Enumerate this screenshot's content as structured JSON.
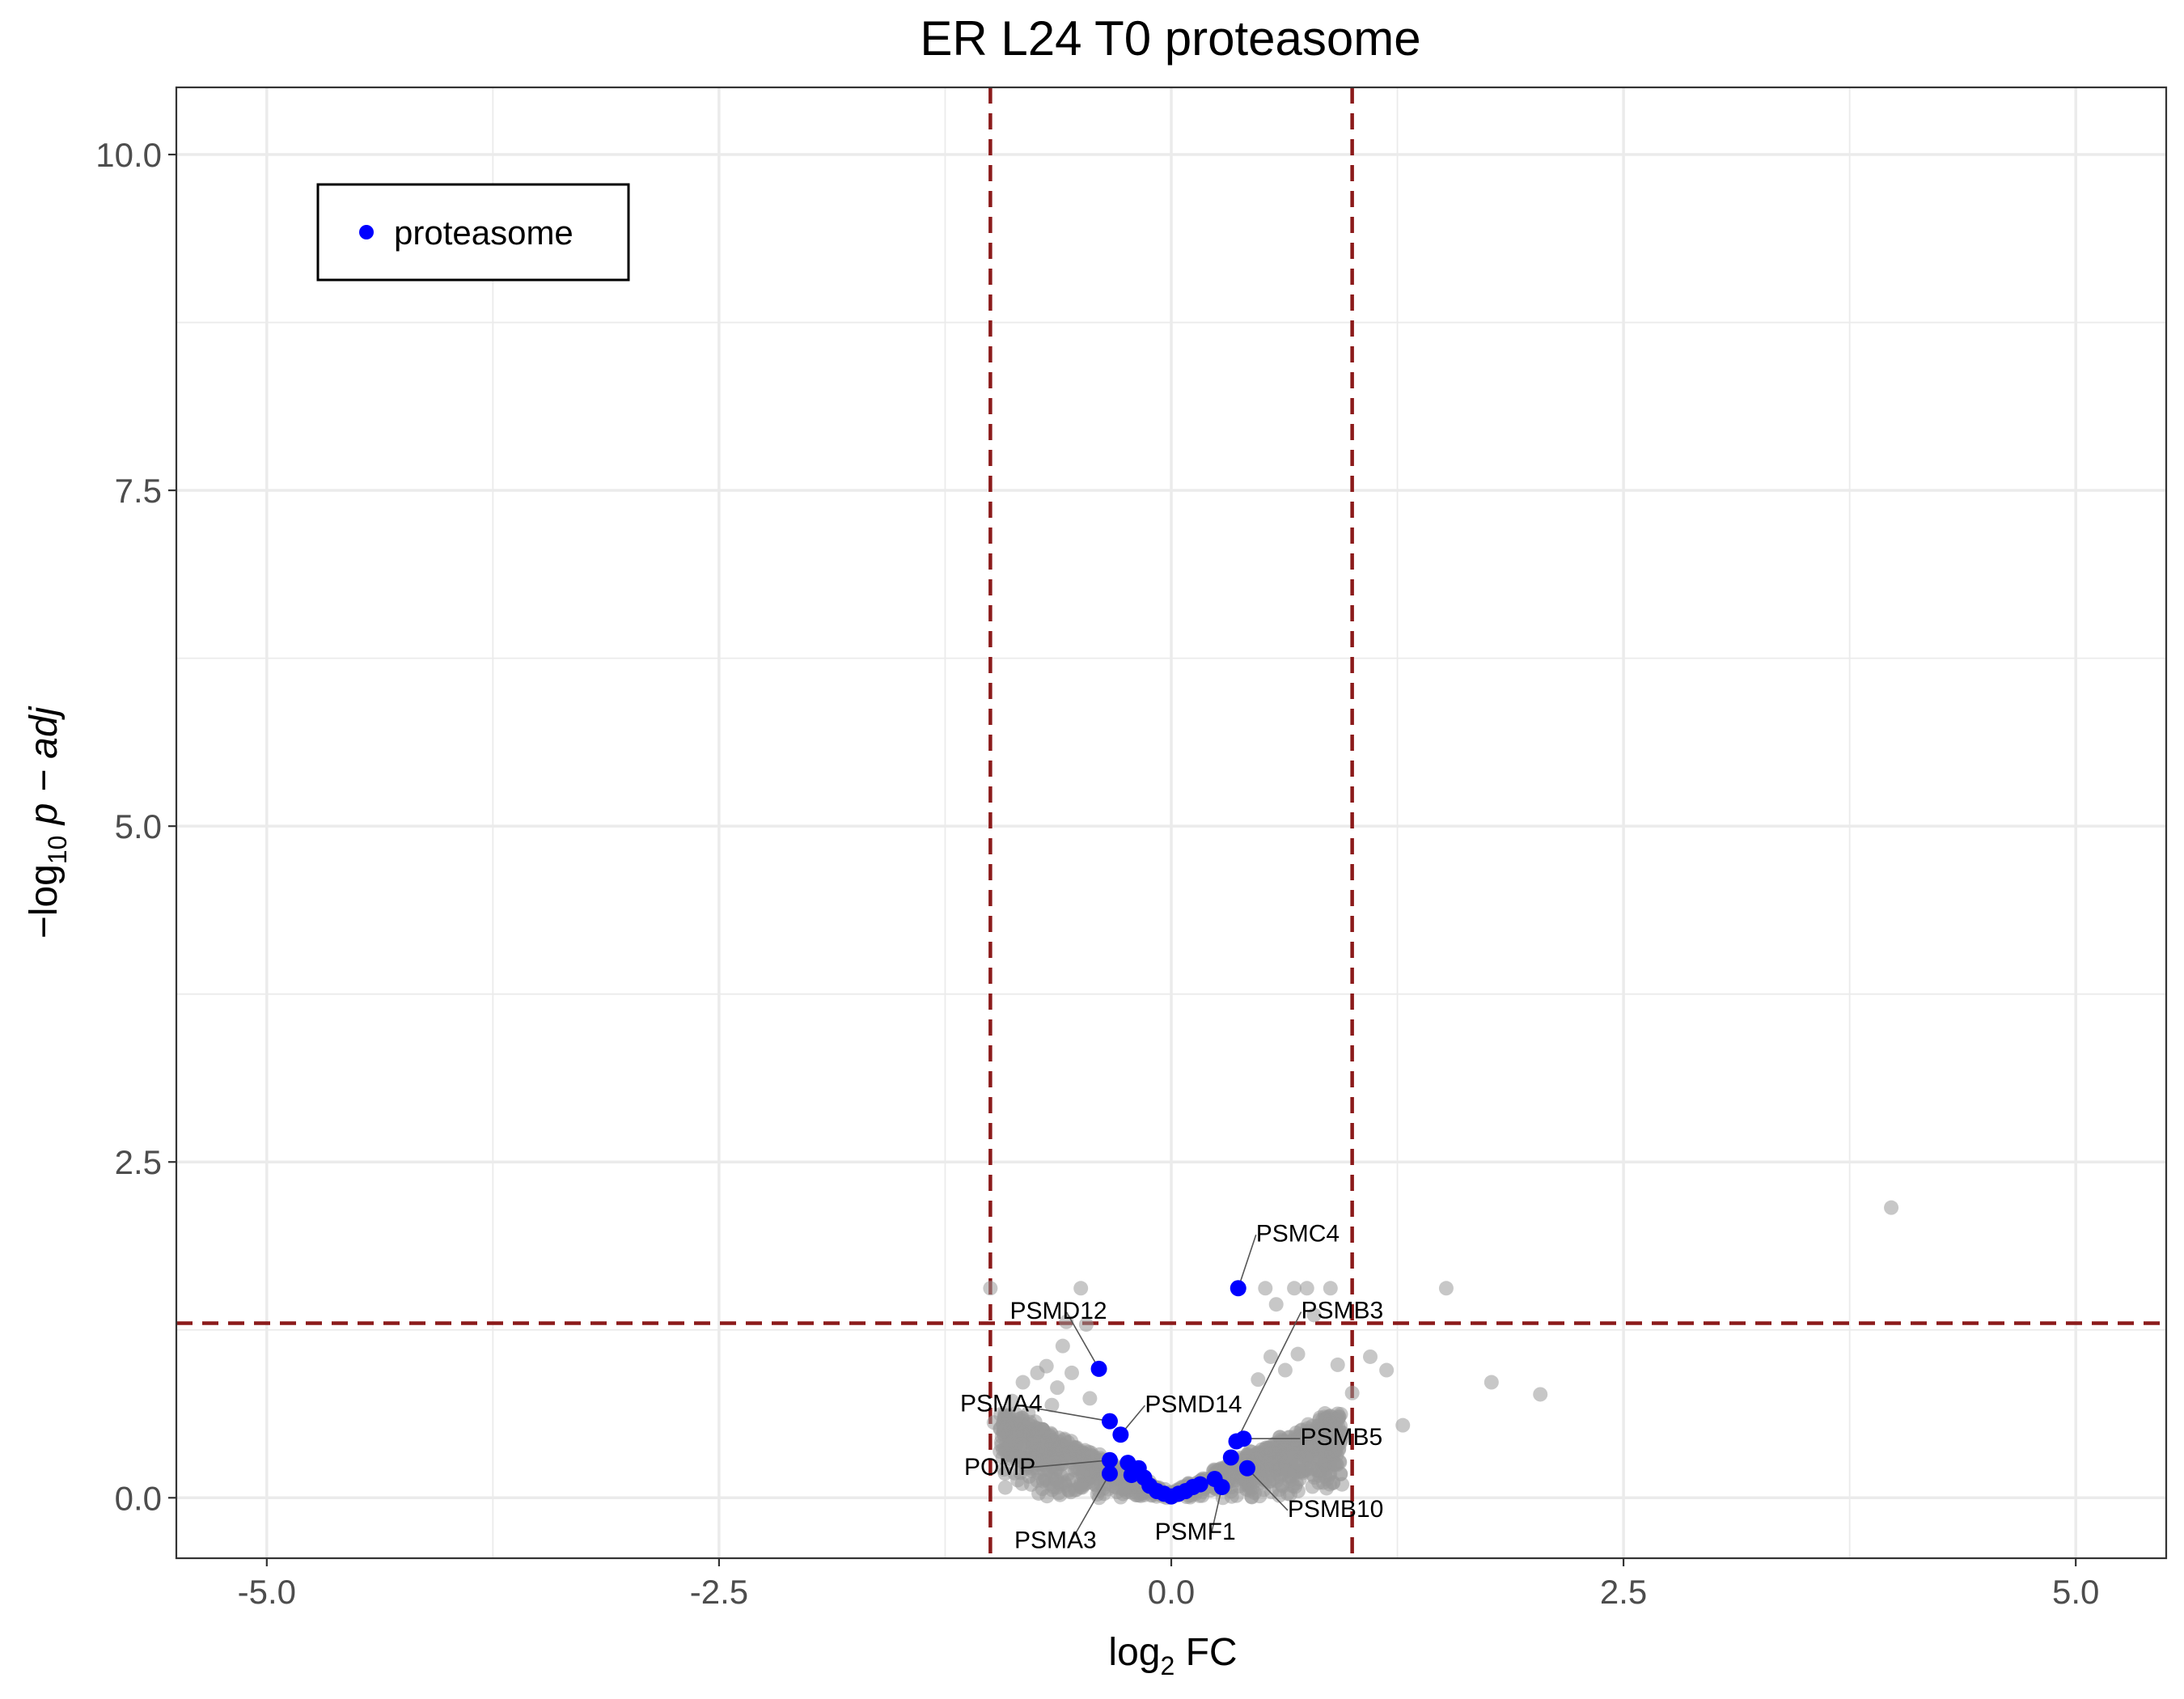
{
  "chart_data": {
    "type": "scatter",
    "title": "ER L24 T0 proteasome",
    "xlabel": {
      "prefix": "log",
      "sub": "2",
      "suffix": " FC"
    },
    "ylabel": {
      "prefix": "−log",
      "sub": "10",
      "suffix": " p − adj"
    },
    "xlim": [
      -5.5,
      5.5
    ],
    "ylim": [
      -0.45,
      10.5
    ],
    "x_ticks": [
      -5.0,
      -2.5,
      0.0,
      2.5,
      5.0
    ],
    "x_tick_labels": [
      "-5.0",
      "-2.5",
      "0.0",
      "2.5",
      "5.0"
    ],
    "y_ticks": [
      0.0,
      2.5,
      5.0,
      7.5,
      10.0
    ],
    "y_tick_labels": [
      "0.0",
      "2.5",
      "5.0",
      "7.5",
      "10.0"
    ],
    "grid": true,
    "fc_cutoff": [
      -1.0,
      1.0
    ],
    "p_cutoff": 1.3,
    "legend": {
      "position": "top-left",
      "entries": [
        {
          "name": "proteasome",
          "color": "#0000ff"
        }
      ]
    },
    "colors": {
      "background_points": "#999999",
      "highlight": "#0000ff",
      "cutoff_lines": "#8b1a1a"
    },
    "series": [
      {
        "name": "proteasome",
        "points": [
          {
            "x": 0.37,
            "y": 1.56,
            "label": "PSMC4"
          },
          {
            "x": -0.4,
            "y": 0.96,
            "label": "PSMD12"
          },
          {
            "x": -0.28,
            "y": 0.47,
            "label": "PSMD14"
          },
          {
            "x": -0.34,
            "y": 0.57,
            "label": "PSMA4"
          },
          {
            "x": -0.34,
            "y": 0.28,
            "label": "POMP"
          },
          {
            "x": -0.34,
            "y": 0.18,
            "label": "PSMA3"
          },
          {
            "x": 0.28,
            "y": 0.08,
            "label": "PSMF1"
          },
          {
            "x": 0.36,
            "y": 0.42,
            "label": "PSMB3"
          },
          {
            "x": 0.4,
            "y": 0.44,
            "label": "PSMB5"
          },
          {
            "x": 0.42,
            "y": 0.22,
            "label": "PSMB10"
          },
          {
            "x": -0.24,
            "y": 0.26
          },
          {
            "x": -0.22,
            "y": 0.17
          },
          {
            "x": -0.18,
            "y": 0.22
          },
          {
            "x": -0.15,
            "y": 0.15
          },
          {
            "x": -0.12,
            "y": 0.09
          },
          {
            "x": -0.08,
            "y": 0.05
          },
          {
            "x": -0.04,
            "y": 0.03
          },
          {
            "x": 0.0,
            "y": 0.01
          },
          {
            "x": 0.04,
            "y": 0.03
          },
          {
            "x": 0.08,
            "y": 0.05
          },
          {
            "x": 0.12,
            "y": 0.08
          },
          {
            "x": 0.16,
            "y": 0.1
          },
          {
            "x": 0.24,
            "y": 0.14
          },
          {
            "x": 0.33,
            "y": 0.3
          }
        ]
      }
    ],
    "background_points": [
      [
        3.98,
        2.16
      ],
      [
        1.52,
        1.56
      ],
      [
        1.77,
        0.86
      ],
      [
        2.04,
        0.77
      ],
      [
        1.19,
        0.95
      ],
      [
        1.28,
        0.54
      ],
      [
        0.52,
        1.56
      ],
      [
        0.68,
        1.56
      ],
      [
        0.75,
        1.56
      ],
      [
        0.88,
        1.56
      ],
      [
        0.58,
        1.44
      ],
      [
        0.79,
        1.36
      ],
      [
        1.1,
        1.05
      ],
      [
        0.92,
        0.99
      ],
      [
        1.0,
        0.78
      ],
      [
        0.7,
        1.07
      ],
      [
        0.63,
        0.95
      ],
      [
        0.48,
        0.88
      ],
      [
        0.55,
        1.05
      ],
      [
        -1.0,
        1.56
      ],
      [
        -0.5,
        1.56
      ],
      [
        -0.58,
        1.31
      ],
      [
        -0.47,
        1.29
      ],
      [
        -0.6,
        1.13
      ],
      [
        -0.69,
        0.98
      ],
      [
        -0.55,
        0.93
      ],
      [
        -0.74,
        0.93
      ],
      [
        -0.82,
        0.86
      ],
      [
        -0.63,
        0.82
      ],
      [
        -0.88,
        0.72
      ],
      [
        -0.92,
        0.63
      ],
      [
        -0.98,
        0.56
      ],
      [
        -0.79,
        0.63
      ],
      [
        -0.66,
        0.69
      ],
      [
        -0.45,
        0.74
      ]
    ]
  }
}
